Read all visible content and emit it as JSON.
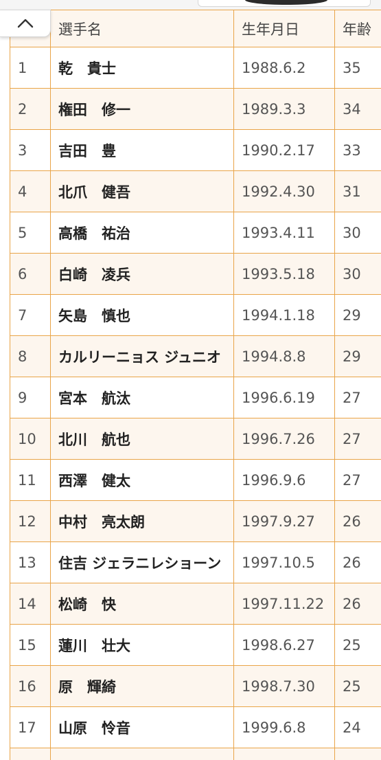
{
  "table": {
    "headers": [
      "",
      "選手名",
      "生年月日",
      "年齢"
    ],
    "rows": [
      {
        "no": "1",
        "name": "乾　貴士",
        "birth": "1988.6.2",
        "age": "35"
      },
      {
        "no": "2",
        "name": "権田　修一",
        "birth": "1989.3.3",
        "age": "34"
      },
      {
        "no": "3",
        "name": "吉田　豊",
        "birth": "1990.2.17",
        "age": "33"
      },
      {
        "no": "4",
        "name": "北爪　健吾",
        "birth": "1992.4.30",
        "age": "31"
      },
      {
        "no": "5",
        "name": "高橋　祐治",
        "birth": "1993.4.11",
        "age": "30"
      },
      {
        "no": "6",
        "name": "白崎　凌兵",
        "birth": "1993.5.18",
        "age": "30"
      },
      {
        "no": "7",
        "name": "矢島　慎也",
        "birth": "1994.1.18",
        "age": "29"
      },
      {
        "no": "8",
        "name": "カルリーニョス ジュニオ",
        "birth": "1994.8.8",
        "age": "29"
      },
      {
        "no": "9",
        "name": "宮本　航汰",
        "birth": "1996.6.19",
        "age": "27"
      },
      {
        "no": "10",
        "name": "北川　航也",
        "birth": "1996.7.26",
        "age": "27"
      },
      {
        "no": "11",
        "name": "西澤　健太",
        "birth": "1996.9.6",
        "age": "27"
      },
      {
        "no": "12",
        "name": "中村　亮太朗",
        "birth": "1997.9.27",
        "age": "26"
      },
      {
        "no": "13",
        "name": "住吉 ジェラニレショーン",
        "birth": "1997.10.5",
        "age": "26"
      },
      {
        "no": "14",
        "name": "松崎　快",
        "birth": "1997.11.22",
        "age": "26"
      },
      {
        "no": "15",
        "name": "蓮川　壮大",
        "birth": "1998.6.27",
        "age": "25"
      },
      {
        "no": "16",
        "name": "原　輝綺",
        "birth": "1998.7.30",
        "age": "25"
      },
      {
        "no": "17",
        "name": "山原　怜音",
        "birth": "1999.6.8",
        "age": "24"
      }
    ]
  },
  "icons": {
    "scroll_top": "chevron-up-icon"
  },
  "colors": {
    "border": "#e9a447",
    "stripe": "#fdf6ee"
  }
}
